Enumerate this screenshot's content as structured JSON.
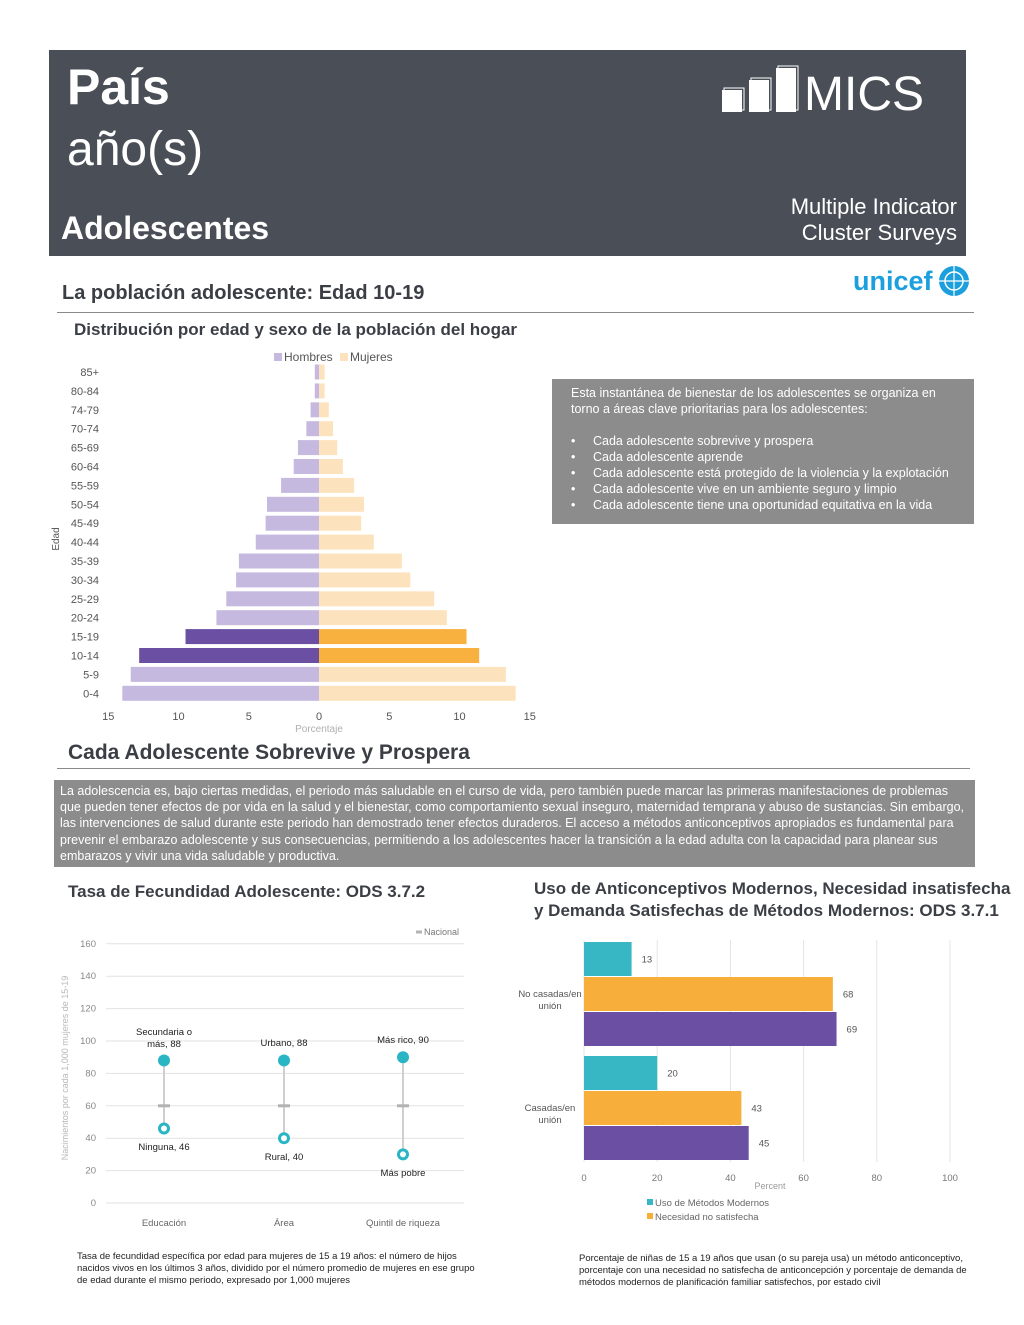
{
  "header": {
    "country": "País",
    "years": "año(s)",
    "section": "Adolescentes",
    "logo_text": "MICS",
    "logo_sub1": "Multiple Indicator",
    "logo_sub2": "Cluster Surveys",
    "unicef": "unicef"
  },
  "section1": {
    "title": "La población adolescente: Edad 10-19",
    "subtitle": "Distribución por edad y sexo de la población del hogar"
  },
  "snapshot": {
    "intro": "Esta instantánea de bienestar de los adolescentes se organiza en torno a áreas clave prioritarias para los adolescentes:",
    "items": [
      "Cada adolescente sobrevive y prospera",
      "Cada adolescente aprende",
      "Cada adolescente está protegido de la violencia y la explotación",
      "Cada adolescente vive en un ambiente seguro y limpio",
      "Cada adolescente tiene una oportunidad equitativa en la vida"
    ]
  },
  "section2": {
    "title": "Cada Adolescente Sobrevive y Prospera",
    "text": "La adolescencia es, bajo ciertas medidas, el periodo más saludable en el curso de vida, pero también puede marcar las primeras manifestaciones de problemas que pueden tener efectos de por vida en la salud y el bienestar, como comportamiento sexual inseguro, maternidad temprana y abuso de sustancias. Sin embargo, las intervenciones de salud durante este periodo han demostrado tener efectos duraderos. El acceso a métodos anticonceptivos apropiados es fundamental para prevenir el embarazo adolescente y sus consecuencias, permitiendo a los adolescentes hacer la transición a la edad adulta con la capacidad para planear sus embarazos y vivir una vida saludable y productiva."
  },
  "fertility": {
    "title": "Tasa de Fecundidad Adolescente: ODS 3.7.2",
    "note": "Tasa de fecundidad específica por edad para mujeres de 15 a 19 años: el número de hijos nacidos vivos en los últimos 3 años, dividido por el número promedio de mujeres en ese grupo de edad durante el mismo periodo, expresado por 1,000 mujeres"
  },
  "contraception": {
    "title_line1": "Uso de Anticonceptivos Modernos, Necesidad insatisfecha",
    "title_line2": "y Demanda Satisfechas de Métodos Modernos: ODS 3.7.1",
    "note": "Porcentaje de niñas de 15 a 19 años que usan (o su pareja usa) un método anticonceptivo, porcentaje con una necesidad no satisfecha de anticoncepción y porcentaje de demanda de métodos modernos de planificación familiar satisfechos, por estado civil"
  },
  "chart_data": [
    {
      "type": "bar",
      "orientation": "horizontal-pyramid",
      "categories": [
        "0-4",
        "5-9",
        "10-14",
        "15-19",
        "20-24",
        "25-29",
        "30-34",
        "35-39",
        "40-44",
        "45-49",
        "50-54",
        "55-59",
        "60-64",
        "65-69",
        "70-74",
        "74-79",
        "80-84",
        "85+"
      ],
      "series": [
        {
          "name": "Hombres",
          "values": [
            14.0,
            13.4,
            12.8,
            9.5,
            7.3,
            6.6,
            5.9,
            5.7,
            4.5,
            3.8,
            3.7,
            2.7,
            1.8,
            1.5,
            0.9,
            0.6,
            0.3,
            0.3
          ]
        },
        {
          "name": "Mujeres",
          "values": [
            14.0,
            13.3,
            11.4,
            10.5,
            9.1,
            8.2,
            6.5,
            5.9,
            3.9,
            3.0,
            3.2,
            2.5,
            1.7,
            1.3,
            1.0,
            0.7,
            0.4,
            0.4
          ]
        }
      ],
      "highlight_categories": [
        "10-14",
        "15-19"
      ],
      "colors": {
        "hombres": "#c5b9e0",
        "hombres_highlight": "#6a4fa3",
        "mujeres": "#fde3bd",
        "mujeres_highlight": "#f8b03f"
      },
      "xlabel": "Porcentaje",
      "ylabel": "Edad",
      "xlim": [
        -15,
        15
      ],
      "xticks": [
        "15",
        "10",
        "5",
        "0",
        "5",
        "10",
        "15"
      ],
      "legend": "top"
    },
    {
      "type": "scatter",
      "categories": [
        "Educación",
        "Área",
        "Quintil de riqueza"
      ],
      "high": [
        88,
        88,
        90
      ],
      "low": [
        46,
        40,
        30
      ],
      "national": [
        60,
        60,
        60
      ],
      "high_labels": [
        "Secundaria o más, 88",
        "Urbano, 88",
        "Más rico, 90"
      ],
      "low_labels": [
        "Ninguna, 46",
        "Rural, 40",
        "Más pobre"
      ],
      "legend_national": "Nacional",
      "ylabel": "Nacimientos por cada 1,000 mujeres de 15-19",
      "ylim": [
        0,
        160
      ],
      "yticks": [
        0,
        20,
        40,
        60,
        80,
        100,
        120,
        140,
        160
      ],
      "color": "#2ab5c4"
    },
    {
      "type": "bar",
      "orientation": "horizontal",
      "categories": [
        "No casadas/en unión",
        "Casadas/en unión"
      ],
      "category_labels": [
        [
          "No casadas/en",
          "unión"
        ],
        [
          "Casadas/en",
          "unión"
        ]
      ],
      "series": [
        {
          "name": "Uso de Métodos Modernos",
          "values": [
            13,
            20
          ],
          "color": "#36b7c3"
        },
        {
          "name": "Necesidad no satisfecha",
          "values": [
            68,
            43
          ],
          "color": "#f8ae3b"
        },
        {
          "name": "",
          "values": [
            69,
            45
          ],
          "color": "#6a4fa3"
        }
      ],
      "xlabel": "Percent",
      "xlim": [
        0,
        100
      ],
      "xticks": [
        0,
        20,
        40,
        60,
        80,
        100
      ]
    }
  ]
}
